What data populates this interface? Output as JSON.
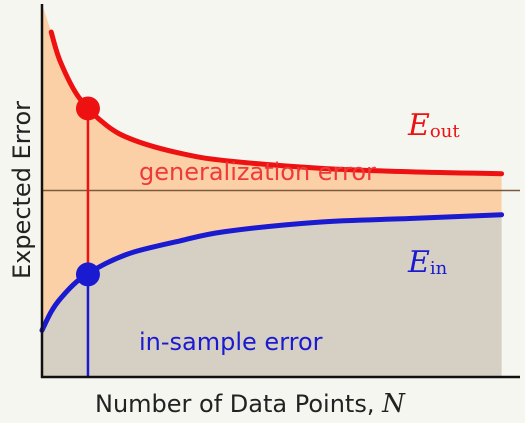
{
  "chart_data": {
    "type": "line",
    "xlabel": "Number of Data Points, N",
    "xlabel_main": "Number of Data Points, ",
    "xlabel_var": "N",
    "ylabel": "Expected Error",
    "x_ticks": [],
    "y_ticks": [],
    "grid": false,
    "legend": "none",
    "series": [
      {
        "name": "E_out",
        "label_main": "E",
        "label_sub": "out",
        "color": "#ee1111",
        "x": [
          1.1,
          1.2,
          1.4,
          1.7,
          2.0,
          2.5,
          3.0,
          4.0,
          5.0,
          6.0
        ],
        "values": [
          1.85,
          1.69,
          1.5,
          1.35,
          1.27,
          1.2,
          1.16,
          1.12,
          1.1,
          1.09
        ]
      },
      {
        "name": "E_in",
        "label_main": "E",
        "label_sub": "in",
        "color": "#1a1ad0",
        "x": [
          1.0,
          1.1,
          1.2,
          1.4,
          1.7,
          2.0,
          2.5,
          3.0,
          4.0,
          5.0,
          6.0
        ],
        "values": [
          0.25,
          0.35,
          0.42,
          0.52,
          0.61,
          0.67,
          0.73,
          0.78,
          0.83,
          0.85,
          0.87
        ]
      }
    ],
    "asymptote": {
      "y": 1.0,
      "color": "#7a5a3a"
    },
    "marker_x": 1.5,
    "marker_points": [
      {
        "series": "E_out",
        "y": 1.44
      },
      {
        "series": "E_in",
        "y": 0.55
      }
    ],
    "annotations": {
      "generalization_error": {
        "text": "generalization error",
        "color": "#ee3a3a"
      },
      "in_sample_error": {
        "text": "in-sample error",
        "color": "#1a1ad0"
      }
    },
    "regions": {
      "generalization_fill": "#fcd0a6",
      "in_sample_fill": "#d6cfc4"
    },
    "xlim": [
      1.0,
      6.2
    ],
    "ylim": [
      0,
      2.0
    ]
  }
}
